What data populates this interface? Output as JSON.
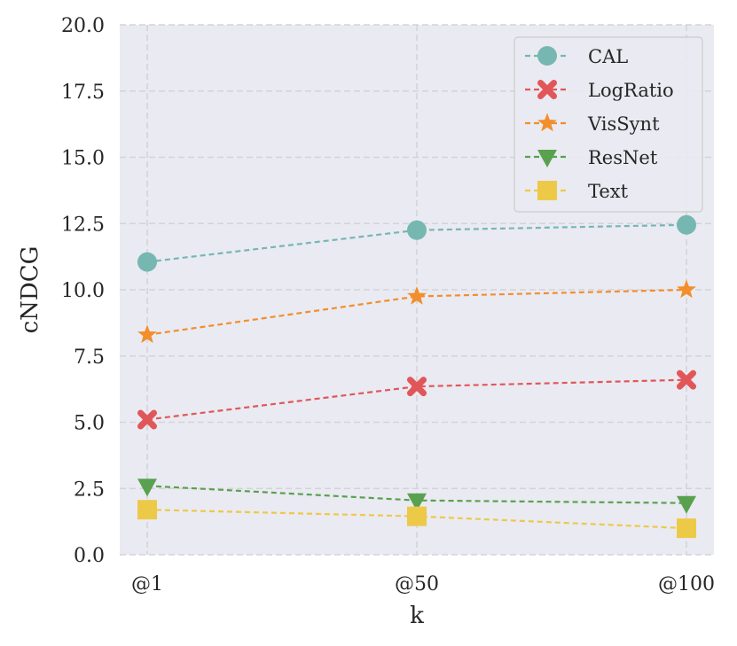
{
  "chart_data": {
    "type": "line",
    "title": "",
    "xlabel": "k",
    "ylabel": "cNDCG",
    "categories": [
      "@1",
      "@50",
      "@100"
    ],
    "ylim": [
      0,
      20
    ],
    "yticks": [
      0.0,
      2.5,
      5.0,
      7.5,
      10.0,
      12.5,
      15.0,
      17.5,
      20.0
    ],
    "ytick_labels": [
      "0.0",
      "2.5",
      "5.0",
      "7.5",
      "10.0",
      "12.5",
      "15.0",
      "17.5",
      "20.0"
    ],
    "grid": true,
    "legend_position": "top-right",
    "series": [
      {
        "name": "CAL",
        "values": [
          11.05,
          12.25,
          12.45
        ],
        "color": "#76b7b2",
        "marker": "circle"
      },
      {
        "name": "LogRatio",
        "values": [
          5.1,
          6.35,
          6.6
        ],
        "color": "#e15759",
        "marker": "x"
      },
      {
        "name": "VisSynt",
        "values": [
          8.3,
          9.75,
          10.0
        ],
        "color": "#f28e2b",
        "marker": "star"
      },
      {
        "name": "ResNet",
        "values": [
          2.6,
          2.05,
          1.95
        ],
        "color": "#59a14f",
        "marker": "triangle-down"
      },
      {
        "name": "Text",
        "values": [
          1.7,
          1.45,
          1.0
        ],
        "color": "#edc948",
        "marker": "square"
      }
    ]
  }
}
